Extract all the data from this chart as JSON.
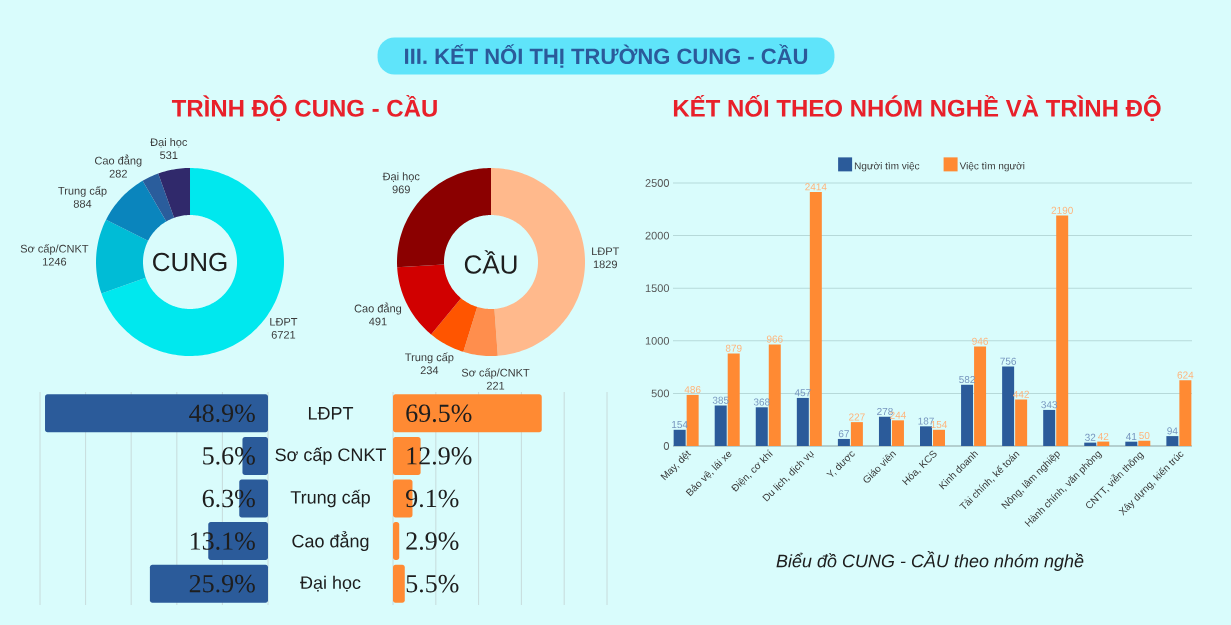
{
  "chart_data": [
    {
      "type": "other",
      "title": "III. KẾT NỐI THỊ TRƯỜNG CUNG - CẦU"
    },
    {
      "type": "donut",
      "title": "TRÌNH ĐỘ CUNG - CẦU",
      "annotations": [
        "CUNG"
      ],
      "categories": [
        "LĐPT",
        "Sơ cấp/CNKT",
        "Trung cấp",
        "Cao đẳng",
        "Đại học"
      ],
      "values": [
        6721,
        1246,
        884,
        282,
        531
      ],
      "colors": [
        "#00e8ee",
        "#00bcd6",
        "#0a85bd",
        "#2a5d9c",
        "#30296b"
      ],
      "data_labels": true
    },
    {
      "type": "donut",
      "annotations": [
        "CẦU"
      ],
      "categories": [
        "LĐPT",
        "Sơ cấp/CNKT",
        "Trung cấp",
        "Cao đẳng",
        "Đại học"
      ],
      "values": [
        1829,
        221,
        234,
        491,
        969
      ],
      "colors": [
        "#ffb98c",
        "#ff8e4d",
        "#ff5500",
        "#d10000",
        "#8b0000"
      ],
      "data_labels": true
    },
    {
      "type": "bar",
      "orientation": "horizontal",
      "categories": [
        "LĐPT",
        "Sơ cấp CNKT",
        "Trung cấp",
        "Cao đẳng",
        "Đại học"
      ],
      "values": [
        48.9,
        5.6,
        6.3,
        13.1,
        25.9
      ],
      "value_labels": [
        "48.9%",
        "5.6%",
        "6.3%",
        "13.1%",
        "25.9%"
      ],
      "color": "#2b5b9a",
      "xlim": [
        50,
        0
      ],
      "xticks": [
        {
          "value": 0,
          "label": null
        },
        {
          "value": 10,
          "label": null
        },
        {
          "value": 20,
          "label": null
        },
        {
          "value": 30,
          "label": null
        },
        {
          "value": 40,
          "label": null
        },
        {
          "value": 50,
          "label": null
        }
      ],
      "grid": "x",
      "tick_labels": "y"
    },
    {
      "type": "bar",
      "orientation": "horizontal",
      "categories": [
        null,
        null,
        null,
        null,
        null
      ],
      "values": [
        69.5,
        12.9,
        9.1,
        2.9,
        5.5
      ],
      "value_labels": [
        "69.5%",
        "12.9%",
        "9.1%",
        "2.9%",
        "5.5%"
      ],
      "color": "#ff8a33",
      "xlim": [
        0,
        100
      ],
      "xticks": [
        {
          "value": 0,
          "label": null
        },
        {
          "value": 20,
          "label": null
        },
        {
          "value": 40,
          "label": null
        },
        {
          "value": 60,
          "label": null
        },
        {
          "value": 80,
          "label": null
        },
        {
          "value": 100,
          "label": null
        }
      ],
      "grid": "x"
    },
    {
      "type": "bar",
      "title": "KẾT NỐI THEO NHÓM NGHỀ VÀ TRÌNH ĐỘ",
      "annotations": [
        "Biểu đồ CUNG - CẦU theo nhóm nghề"
      ],
      "categories": [
        "May, dệt",
        "Bảo vệ, lái xe",
        "Điện, cơ khí",
        "Du lịch, dịch vụ",
        "Y, dược",
        "Giáo viên",
        "Hóa, KCS",
        "Kinh doanh",
        "Tài chính, kế toán",
        "Nông, lâm nghiệp",
        "Hành chính, văn phòng",
        "CNTT, viễn thông",
        "Xây dựng, kiến trúc"
      ],
      "series": [
        {
          "name": "Người tìm việc",
          "color": "#2b5b9a",
          "values": [
            154,
            385,
            368,
            457,
            67,
            278,
            187,
            582,
            756,
            343,
            32,
            41,
            94
          ]
        },
        {
          "name": "Việc tìm người",
          "color": "#ff8a33",
          "values": [
            486,
            879,
            966,
            2414,
            227,
            244,
            154,
            946,
            442,
            2190,
            42,
            50,
            624
          ]
        }
      ],
      "ylim": [
        0,
        2500
      ],
      "yticks": [
        0,
        500,
        1000,
        1500,
        2000,
        2500
      ],
      "grid": "y",
      "legend": "top",
      "data_labels": true
    }
  ]
}
